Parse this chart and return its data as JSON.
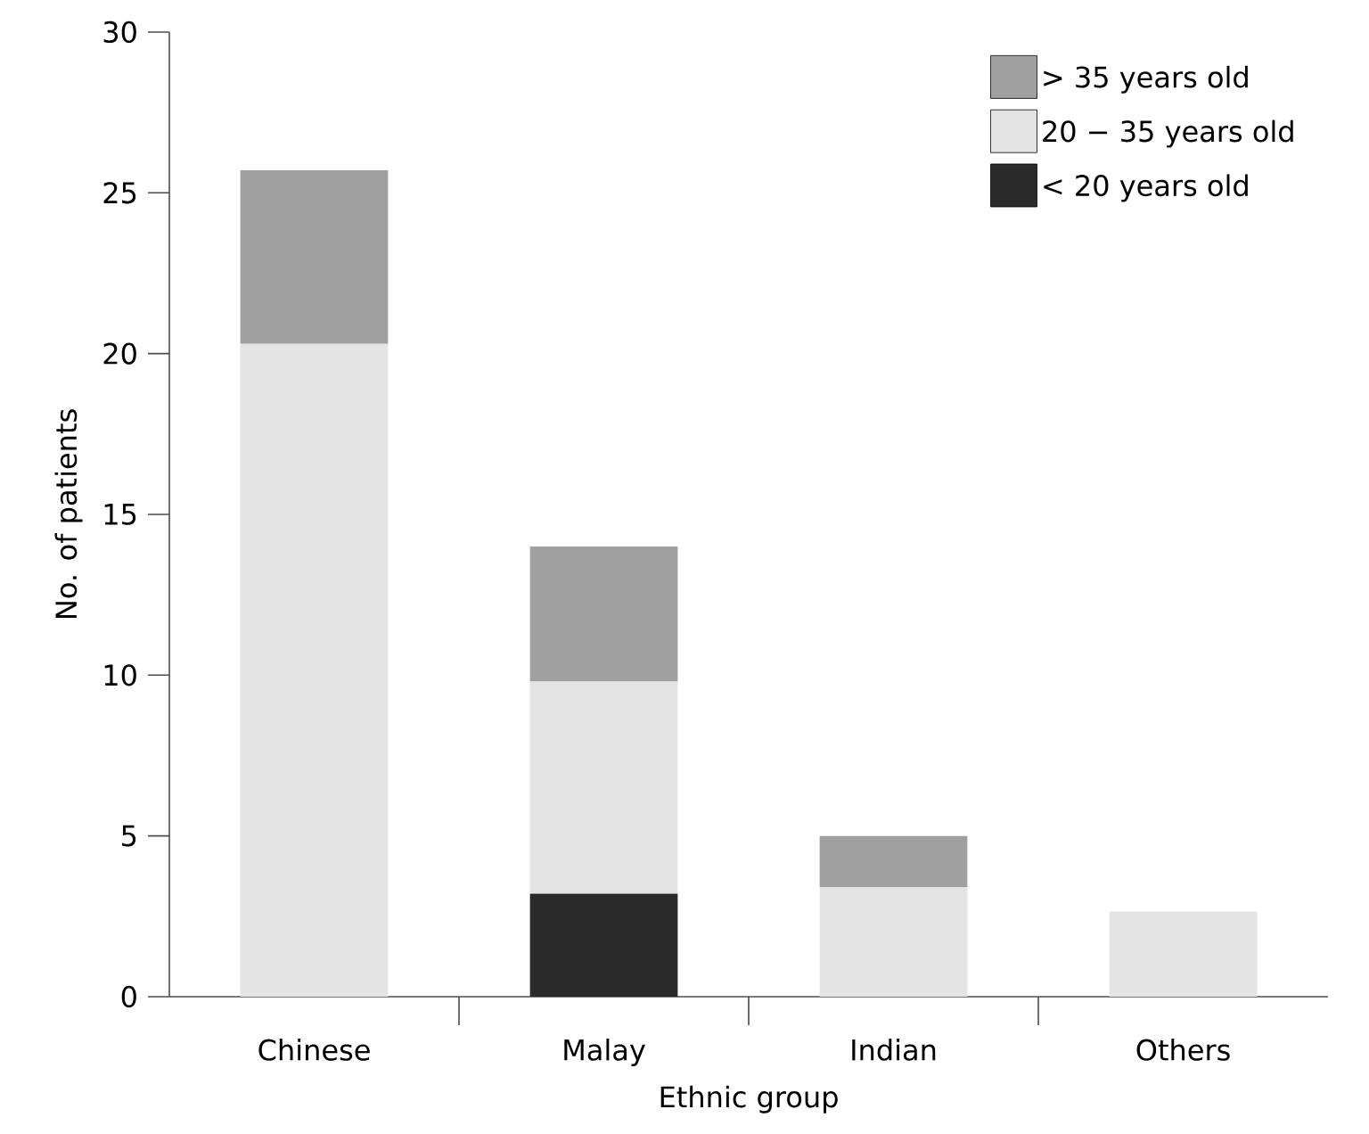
{
  "chart_data": {
    "type": "bar",
    "stacked": true,
    "xlabel": "Ethnic group",
    "ylabel": "No. of patients",
    "categories": [
      "Chinese",
      "Malay",
      "Indian",
      "Others"
    ],
    "series": [
      {
        "name": "< 20 years old",
        "color": "#2a2a2a",
        "values": [
          0,
          3.2,
          0,
          0
        ]
      },
      {
        "name": "20 − 35 years old",
        "color": "#e4e4e4",
        "values": [
          20.3,
          6.6,
          3.4,
          2.65
        ]
      },
      {
        "name": "> 35 years old",
        "color": "#a0a0a0",
        "values": [
          5.4,
          4.2,
          1.6,
          0
        ]
      }
    ],
    "ylim": [
      0,
      30
    ],
    "yticks": [
      0,
      5,
      10,
      15,
      20,
      25,
      30
    ],
    "legend": "top right"
  }
}
